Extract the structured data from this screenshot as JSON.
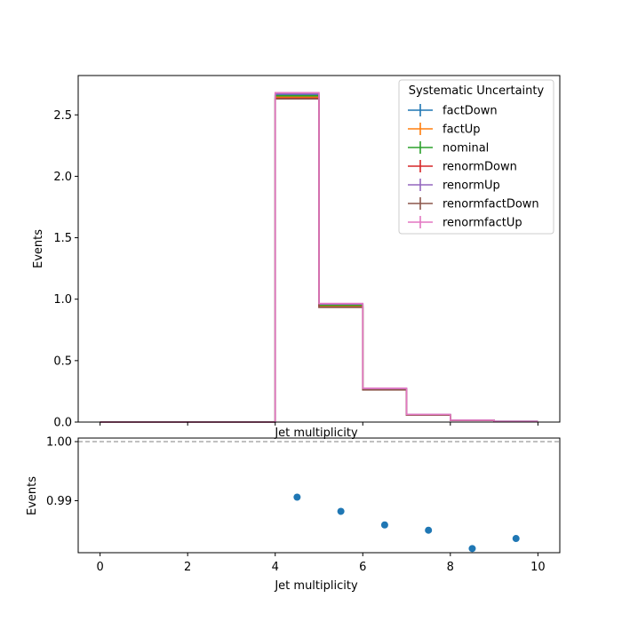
{
  "chart_data": [
    {
      "type": "step",
      "xlabel": "Jet multiplicity",
      "ylabel": "Events",
      "xlim": [
        -0.5,
        10.5
      ],
      "ylim": [
        0,
        2.82
      ],
      "x_ticks": [
        0,
        2,
        4,
        6,
        8,
        10
      ],
      "x_tick_labels_shown": false,
      "y_ticks": [
        "0.0",
        "0.5",
        "1.0",
        "1.5",
        "2.0",
        "2.5"
      ],
      "bin_edges": [
        0,
        1,
        2,
        3,
        4,
        5,
        6,
        7,
        8,
        9,
        10
      ],
      "legend": {
        "title": "Systematic Uncertainty",
        "placement": "upper right"
      },
      "series": [
        {
          "name": "factDown",
          "color": "#1f77b4",
          "values": [
            0,
            0,
            0,
            0,
            2.66,
            0.955,
            0.27,
            0.06,
            0.014,
            0.006
          ]
        },
        {
          "name": "factUp",
          "color": "#ff7f0e",
          "values": [
            0,
            0,
            0,
            0,
            2.645,
            0.945,
            0.266,
            0.058,
            0.013,
            0.005
          ]
        },
        {
          "name": "nominal",
          "color": "#2ca02c",
          "values": [
            0,
            0,
            0,
            0,
            2.655,
            0.95,
            0.268,
            0.059,
            0.014,
            0.006
          ]
        },
        {
          "name": "renormDown",
          "color": "#d62728",
          "values": [
            0,
            0,
            0,
            0,
            2.635,
            0.935,
            0.263,
            0.057,
            0.013,
            0.005
          ]
        },
        {
          "name": "renormUp",
          "color": "#9467bd",
          "values": [
            0,
            0,
            0,
            0,
            2.67,
            0.96,
            0.272,
            0.061,
            0.015,
            0.006
          ]
        },
        {
          "name": "renormfactDown",
          "color": "#8c564b",
          "values": [
            0,
            0,
            0,
            0,
            2.63,
            0.933,
            0.262,
            0.056,
            0.013,
            0.005
          ]
        },
        {
          "name": "renormfactUp",
          "color": "#e377c2",
          "values": [
            0,
            0,
            0,
            0,
            2.68,
            0.965,
            0.275,
            0.062,
            0.015,
            0.006
          ]
        }
      ]
    },
    {
      "type": "scatter",
      "xlabel": "Jet multiplicity",
      "ylabel": "Events",
      "xlim": [
        -0.5,
        10.5
      ],
      "ylim": [
        0.9812,
        1.0006
      ],
      "x_ticks": [
        "0",
        "2",
        "4",
        "6",
        "8",
        "10"
      ],
      "y_ticks": [
        "0.99",
        "1.00"
      ],
      "reference_line": {
        "y": 1.0,
        "style": "dashed",
        "color": "#808080"
      },
      "series": [
        {
          "color": "#1f77b4",
          "x": [
            4.5,
            5.5,
            6.5,
            7.5,
            8.5,
            9.5
          ],
          "y": [
            0.9906,
            0.9882,
            0.9859,
            0.985,
            0.9819,
            0.9836
          ]
        }
      ]
    }
  ]
}
